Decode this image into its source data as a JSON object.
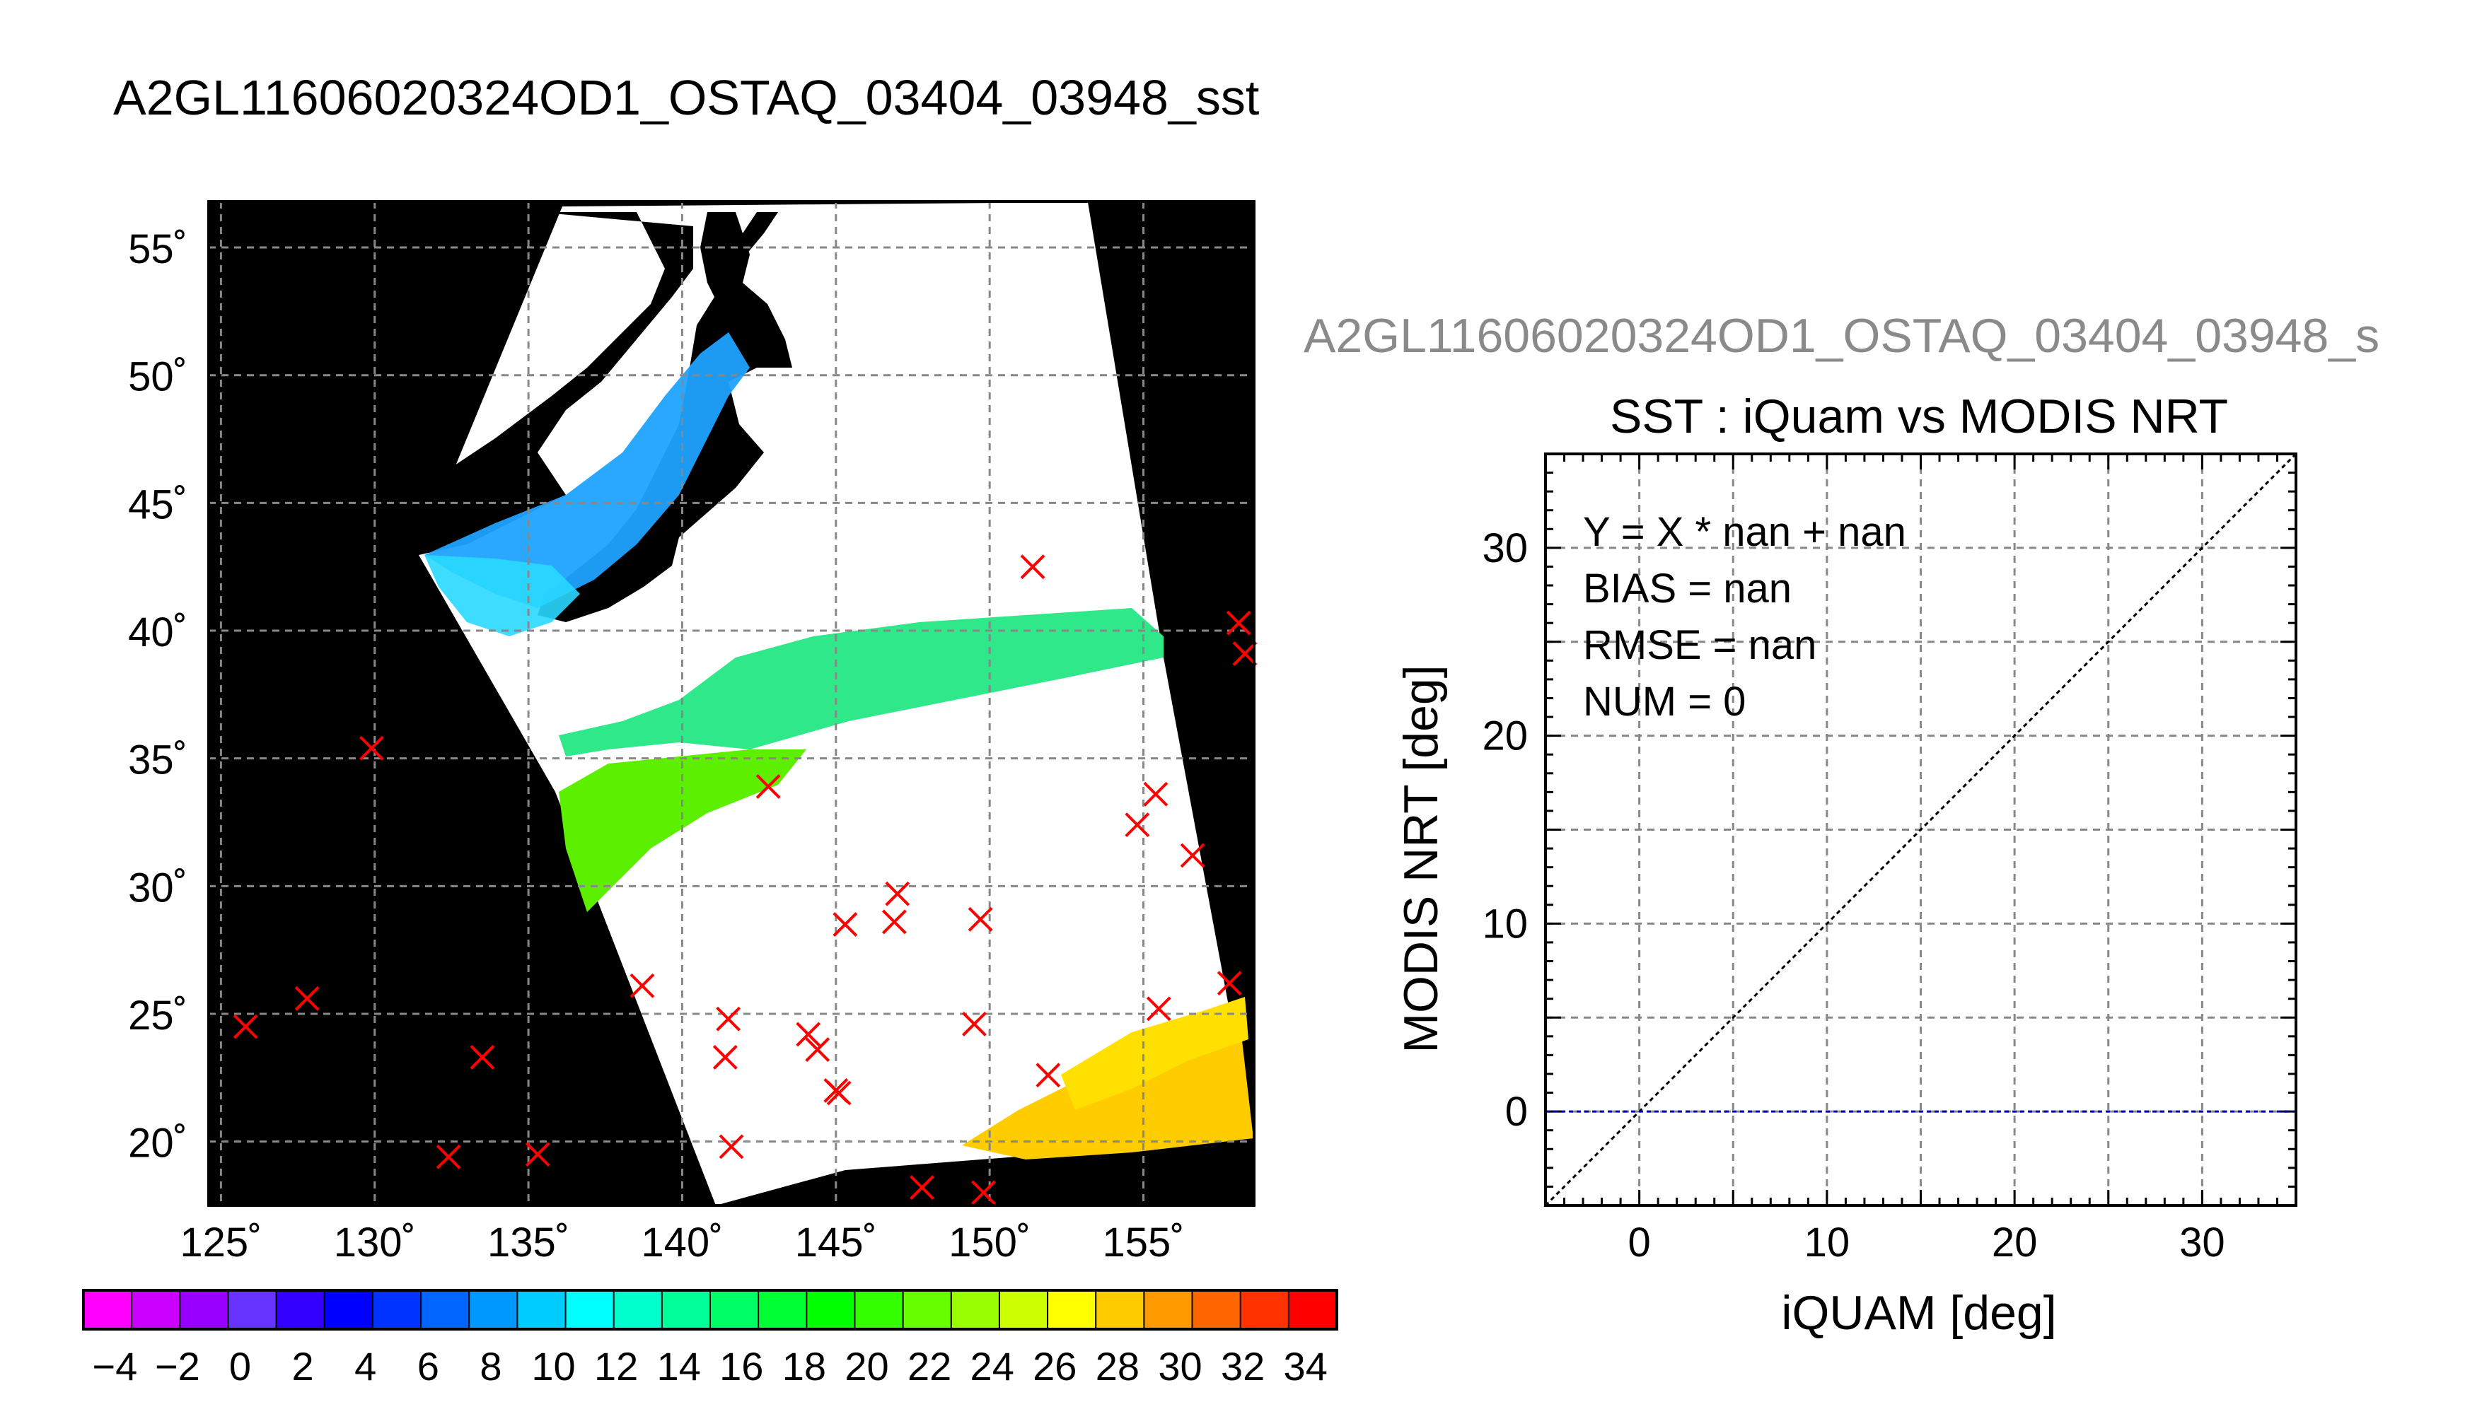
{
  "page_title": "A2GL11606020324OD1_OSTAQ_03404_03948_sst",
  "map": {
    "lat_ticks": [
      55,
      50,
      45,
      40,
      35,
      30,
      25,
      20
    ],
    "lon_ticks": [
      125,
      130,
      135,
      140,
      145,
      150,
      155
    ],
    "lon_range": [
      124.6,
      158.6
    ],
    "lat_range": [
      17.5,
      56.8
    ],
    "degree_symbol": "˚",
    "crosses": [
      [
        125.8,
        24.5
      ],
      [
        127.8,
        25.6
      ],
      [
        129.9,
        35.4
      ],
      [
        132.4,
        19.4
      ],
      [
        133.5,
        23.3
      ],
      [
        135.3,
        19.5
      ],
      [
        138.7,
        26.1
      ],
      [
        141.4,
        23.3
      ],
      [
        141.5,
        24.8
      ],
      [
        141.6,
        19.8
      ],
      [
        142.8,
        33.9
      ],
      [
        144.1,
        24.2
      ],
      [
        144.4,
        23.6
      ],
      [
        145.0,
        22.0
      ],
      [
        145.1,
        21.9
      ],
      [
        145.3,
        28.5
      ],
      [
        146.9,
        28.6
      ],
      [
        147.0,
        29.7
      ],
      [
        147.8,
        18.2
      ],
      [
        149.5,
        24.6
      ],
      [
        149.7,
        28.7
      ],
      [
        149.8,
        18.0
      ],
      [
        151.4,
        42.5
      ],
      [
        151.9,
        22.6
      ],
      [
        154.8,
        32.4
      ],
      [
        155.4,
        33.6
      ],
      [
        155.5,
        25.2
      ],
      [
        156.6,
        31.2
      ],
      [
        157.8,
        26.2
      ],
      [
        158.1,
        40.3
      ],
      [
        158.3,
        39.1
      ]
    ]
  },
  "colorbar": {
    "min": -5,
    "max": 35,
    "tick_labels": [
      "−4",
      "−2",
      "0",
      "2",
      "4",
      "6",
      "8",
      "10",
      "12",
      "14",
      "16",
      "18",
      "20",
      "22",
      "24",
      "26",
      "28",
      "30",
      "32",
      "34"
    ],
    "colors": [
      "#ff00ff",
      "#cc00ff",
      "#9900ff",
      "#6633ff",
      "#3300ff",
      "#0000ff",
      "#0033ff",
      "#0066ff",
      "#0099ff",
      "#00ccff",
      "#00ffff",
      "#00ffcc",
      "#00ff99",
      "#00ff66",
      "#00ff33",
      "#00ff00",
      "#33ff00",
      "#66ff00",
      "#99ff00",
      "#ccff00",
      "#ffff00",
      "#ffcc00",
      "#ff9900",
      "#ff6600",
      "#ff3300",
      "#ff0000"
    ]
  },
  "scatter_panel_title": "A2GL11606020324OD1_OSTAQ_03404_03948_s",
  "chart_data": {
    "type": "scatter",
    "title": "SST : iQuam vs MODIS NRT",
    "xlabel": "iQUAM [deg]",
    "ylabel": "MODIS NRT [deg]",
    "xlim": [
      -5,
      35
    ],
    "ylim": [
      -5,
      35
    ],
    "x_ticks": [
      0,
      10,
      20,
      30
    ],
    "y_ticks": [
      0,
      10,
      20,
      30
    ],
    "grid": true,
    "points": [],
    "reference_lines": [
      {
        "name": "one-to-one",
        "color": "#000000",
        "from": [
          -5,
          -5
        ],
        "to": [
          35,
          35
        ]
      },
      {
        "name": "zero",
        "color": "#0000aa",
        "from": [
          -5,
          0
        ],
        "to": [
          35,
          0
        ]
      }
    ],
    "annotations": [
      "Y = X * nan + nan",
      "BIAS = nan",
      "RMSE = nan",
      "NUM = 0"
    ]
  }
}
